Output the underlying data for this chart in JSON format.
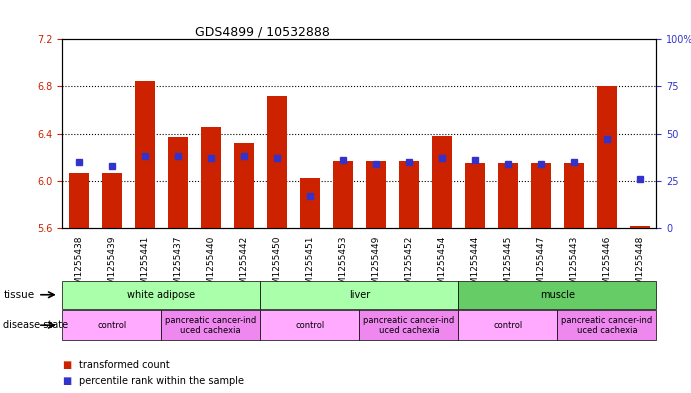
{
  "title": "GDS4899 / 10532888",
  "samples": [
    "GSM1255438",
    "GSM1255439",
    "GSM1255441",
    "GSM1255437",
    "GSM1255440",
    "GSM1255442",
    "GSM1255450",
    "GSM1255451",
    "GSM1255453",
    "GSM1255449",
    "GSM1255452",
    "GSM1255454",
    "GSM1255444",
    "GSM1255445",
    "GSM1255447",
    "GSM1255443",
    "GSM1255446",
    "GSM1255448"
  ],
  "red_values": [
    6.07,
    6.07,
    6.85,
    6.37,
    6.46,
    6.32,
    6.72,
    6.02,
    6.17,
    6.17,
    6.17,
    6.38,
    6.15,
    6.15,
    6.15,
    6.15,
    6.8,
    5.62
  ],
  "blue_values": [
    35,
    33,
    38,
    38,
    37,
    38,
    37,
    17,
    36,
    34,
    35,
    37,
    36,
    34,
    34,
    35,
    47,
    26
  ],
  "ylim_left": [
    5.6,
    7.2
  ],
  "ylim_right": [
    0,
    100
  ],
  "yticks_left": [
    5.6,
    6.0,
    6.4,
    6.8,
    7.2
  ],
  "yticks_right": [
    0,
    25,
    50,
    75,
    100
  ],
  "bar_color": "#cc2200",
  "dot_color": "#3333cc",
  "tissue_groups": [
    {
      "label": "white adipose",
      "start": 0,
      "end": 5,
      "color": "#aaffaa"
    },
    {
      "label": "liver",
      "start": 6,
      "end": 11,
      "color": "#aaffaa"
    },
    {
      "label": "muscle",
      "start": 12,
      "end": 17,
      "color": "#44cc44"
    }
  ],
  "disease_groups": [
    {
      "label": "control",
      "start": 0,
      "end": 2,
      "color": "#ffaaff"
    },
    {
      "label": "pancreatic cancer-ind\nuced cachexia",
      "start": 3,
      "end": 5,
      "color": "#ee88ee"
    },
    {
      "label": "control",
      "start": 6,
      "end": 8,
      "color": "#ffaaff"
    },
    {
      "label": "pancreatic cancer-ind\nuced cachexia",
      "start": 9,
      "end": 11,
      "color": "#ee88ee"
    },
    {
      "label": "control",
      "start": 12,
      "end": 14,
      "color": "#ffaaff"
    },
    {
      "label": "pancreatic cancer-ind\nuced cachexia",
      "start": 15,
      "end": 17,
      "color": "#ee88ee"
    }
  ],
  "legend_items": [
    {
      "label": "transformed count",
      "color": "#cc2200",
      "marker": "s"
    },
    {
      "label": "percentile rank within the sample",
      "color": "#3333cc",
      "marker": "s"
    }
  ]
}
